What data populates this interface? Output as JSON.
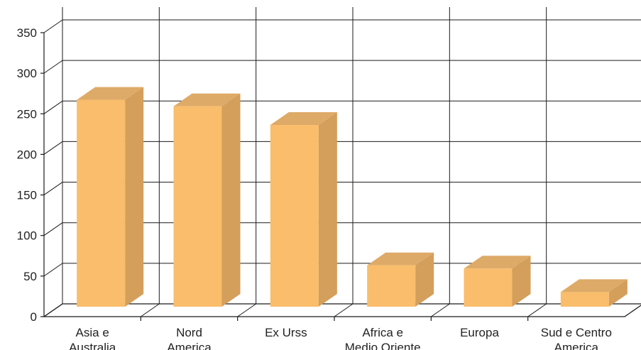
{
  "chart_data": {
    "type": "bar",
    "categories": [
      [
        "Asia e",
        "Australia"
      ],
      [
        "Nord",
        "America"
      ],
      [
        "Ex Urss"
      ],
      [
        "Africa e",
        "Medio Oriente"
      ],
      [
        "Europa"
      ],
      [
        "Sud e Centro",
        "America"
      ]
    ],
    "values": [
      255,
      247,
      224,
      51,
      47,
      18
    ],
    "ylim": [
      0,
      350
    ],
    "yticks": [
      0,
      50,
      100,
      150,
      200,
      250,
      300,
      350
    ],
    "grid": true,
    "colors": {
      "bar_front": "#F9BD6B",
      "bar_side": "#D49E5B",
      "bar_top": "#DEAA68",
      "grid": "#1a1a1a"
    }
  }
}
